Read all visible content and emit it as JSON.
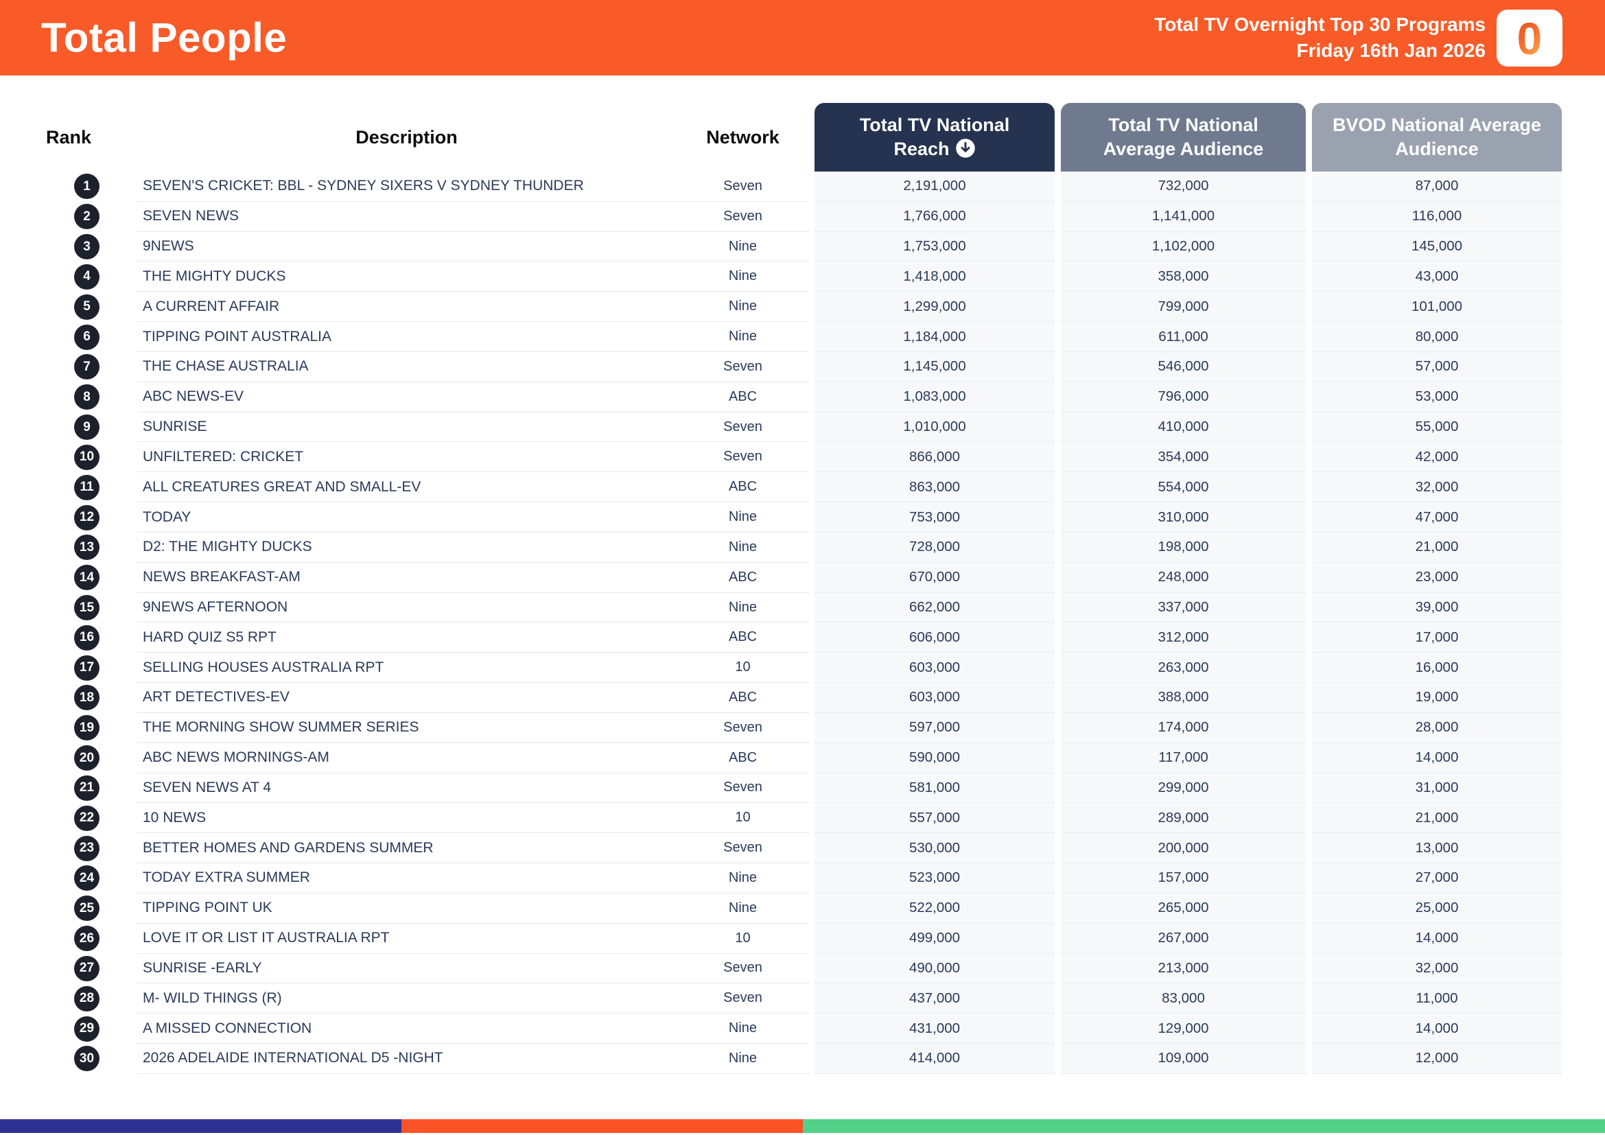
{
  "header": {
    "title": "Total People",
    "subtitle_line1": "Total TV Overnight Top 30 Programs",
    "subtitle_line2": "Friday 16th Jan 2026",
    "logo_glyph": "0"
  },
  "columns": {
    "rank": "Rank",
    "description": "Description",
    "network": "Network",
    "reach": "Total TV National Reach",
    "avg": "Total TV National Average Audience",
    "bvod": "BVOD National Average Audience"
  },
  "colors": {
    "banner_orange": "#F85B28",
    "pill_navy": "#253350",
    "pill_gray": "#707A8F",
    "pill_light_gray": "#9AA2B0",
    "numeric_column_bg": "#F7F8FA",
    "row_text_navy": "#2A3A5A",
    "rank_badge": "#1D212B"
  },
  "table": {
    "rows": [
      {
        "rank": "1",
        "description": "SEVEN'S CRICKET: BBL - SYDNEY SIXERS V SYDNEY THUNDER",
        "network": "Seven",
        "reach": "2,191,000",
        "avg": "732,000",
        "bvod": "87,000"
      },
      {
        "rank": "2",
        "description": "SEVEN NEWS",
        "network": "Seven",
        "reach": "1,766,000",
        "avg": "1,141,000",
        "bvod": "116,000"
      },
      {
        "rank": "3",
        "description": "9NEWS",
        "network": "Nine",
        "reach": "1,753,000",
        "avg": "1,102,000",
        "bvod": "145,000"
      },
      {
        "rank": "4",
        "description": "THE MIGHTY DUCKS",
        "network": "Nine",
        "reach": "1,418,000",
        "avg": "358,000",
        "bvod": "43,000"
      },
      {
        "rank": "5",
        "description": "A CURRENT AFFAIR",
        "network": "Nine",
        "reach": "1,299,000",
        "avg": "799,000",
        "bvod": "101,000"
      },
      {
        "rank": "6",
        "description": "TIPPING POINT AUSTRALIA",
        "network": "Nine",
        "reach": "1,184,000",
        "avg": "611,000",
        "bvod": "80,000"
      },
      {
        "rank": "7",
        "description": "THE CHASE AUSTRALIA",
        "network": "Seven",
        "reach": "1,145,000",
        "avg": "546,000",
        "bvod": "57,000"
      },
      {
        "rank": "8",
        "description": "ABC NEWS-EV",
        "network": "ABC",
        "reach": "1,083,000",
        "avg": "796,000",
        "bvod": "53,000"
      },
      {
        "rank": "9",
        "description": "SUNRISE",
        "network": "Seven",
        "reach": "1,010,000",
        "avg": "410,000",
        "bvod": "55,000"
      },
      {
        "rank": "10",
        "description": "UNFILTERED: CRICKET",
        "network": "Seven",
        "reach": "866,000",
        "avg": "354,000",
        "bvod": "42,000"
      },
      {
        "rank": "11",
        "description": "ALL CREATURES GREAT AND SMALL-EV",
        "network": "ABC",
        "reach": "863,000",
        "avg": "554,000",
        "bvod": "32,000"
      },
      {
        "rank": "12",
        "description": "TODAY",
        "network": "Nine",
        "reach": "753,000",
        "avg": "310,000",
        "bvod": "47,000"
      },
      {
        "rank": "13",
        "description": "D2: THE MIGHTY DUCKS",
        "network": "Nine",
        "reach": "728,000",
        "avg": "198,000",
        "bvod": "21,000"
      },
      {
        "rank": "14",
        "description": "NEWS BREAKFAST-AM",
        "network": "ABC",
        "reach": "670,000",
        "avg": "248,000",
        "bvod": "23,000"
      },
      {
        "rank": "15",
        "description": "9NEWS AFTERNOON",
        "network": "Nine",
        "reach": "662,000",
        "avg": "337,000",
        "bvod": "39,000"
      },
      {
        "rank": "16",
        "description": "HARD QUIZ S5 RPT",
        "network": "ABC",
        "reach": "606,000",
        "avg": "312,000",
        "bvod": "17,000"
      },
      {
        "rank": "17",
        "description": "SELLING HOUSES AUSTRALIA RPT",
        "network": "10",
        "reach": "603,000",
        "avg": "263,000",
        "bvod": "16,000"
      },
      {
        "rank": "18",
        "description": "ART DETECTIVES-EV",
        "network": "ABC",
        "reach": "603,000",
        "avg": "388,000",
        "bvod": "19,000"
      },
      {
        "rank": "19",
        "description": "THE MORNING SHOW SUMMER SERIES",
        "network": "Seven",
        "reach": "597,000",
        "avg": "174,000",
        "bvod": "28,000"
      },
      {
        "rank": "20",
        "description": "ABC NEWS MORNINGS-AM",
        "network": "ABC",
        "reach": "590,000",
        "avg": "117,000",
        "bvod": "14,000"
      },
      {
        "rank": "21",
        "description": "SEVEN NEWS AT 4",
        "network": "Seven",
        "reach": "581,000",
        "avg": "299,000",
        "bvod": "31,000"
      },
      {
        "rank": "22",
        "description": "10 NEWS",
        "network": "10",
        "reach": "557,000",
        "avg": "289,000",
        "bvod": "21,000"
      },
      {
        "rank": "23",
        "description": "BETTER HOMES AND GARDENS SUMMER",
        "network": "Seven",
        "reach": "530,000",
        "avg": "200,000",
        "bvod": "13,000"
      },
      {
        "rank": "24",
        "description": "TODAY EXTRA SUMMER",
        "network": "Nine",
        "reach": "523,000",
        "avg": "157,000",
        "bvod": "27,000"
      },
      {
        "rank": "25",
        "description": "TIPPING POINT UK",
        "network": "Nine",
        "reach": "522,000",
        "avg": "265,000",
        "bvod": "25,000"
      },
      {
        "rank": "26",
        "description": "LOVE IT OR LIST IT AUSTRALIA RPT",
        "network": "10",
        "reach": "499,000",
        "avg": "267,000",
        "bvod": "14,000"
      },
      {
        "rank": "27",
        "description": "SUNRISE -EARLY",
        "network": "Seven",
        "reach": "490,000",
        "avg": "213,000",
        "bvod": "32,000"
      },
      {
        "rank": "28",
        "description": "M- WILD THINGS (R)",
        "network": "Seven",
        "reach": "437,000",
        "avg": "83,000",
        "bvod": "11,000"
      },
      {
        "rank": "29",
        "description": "A MISSED CONNECTION",
        "network": "Nine",
        "reach": "431,000",
        "avg": "129,000",
        "bvod": "14,000"
      },
      {
        "rank": "30",
        "description": "2026 ADELAIDE INTERNATIONAL D5 -NIGHT",
        "network": "Nine",
        "reach": "414,000",
        "avg": "109,000",
        "bvod": "12,000"
      }
    ]
  },
  "footer": {
    "segments": [
      {
        "color": "#2E3192",
        "width": "25%"
      },
      {
        "color": "#FB5226",
        "width": "25%"
      },
      {
        "color": "#53D189",
        "width": "50%"
      }
    ]
  }
}
